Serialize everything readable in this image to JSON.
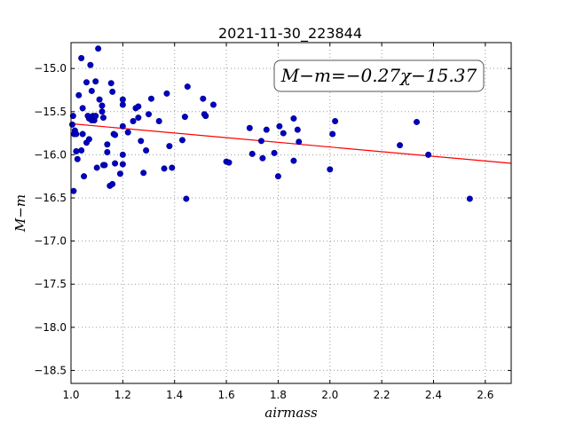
{
  "chart_data": {
    "type": "scatter",
    "title": "2021-11-30_223844",
    "xlabel": "airmass",
    "ylabel": "M−m",
    "annotation": "M−m=−0.27χ−15.37",
    "xlim": [
      1.0,
      2.7
    ],
    "ylim": [
      -18.65,
      -14.7
    ],
    "y_inverted": true,
    "grid": true,
    "xticks": [
      "1.0",
      "1.2",
      "1.4",
      "1.6",
      "1.8",
      "2.0",
      "2.2",
      "2.4",
      "2.6"
    ],
    "yticks": [
      "−15.0",
      "−15.5",
      "−16.0",
      "−16.5",
      "−17.0",
      "−17.5",
      "−18.0",
      "−18.5"
    ],
    "colors": {
      "points": "#0000bf",
      "fit_line": "#ff0000",
      "grid": "#9a9a9a"
    },
    "fit": {
      "slope": -0.27,
      "intercept": -15.37
    },
    "series": [
      {
        "values": [
          [
            1.005,
            -15.65
          ],
          [
            1.008,
            -15.55
          ],
          [
            1.01,
            -16.42
          ],
          [
            1.012,
            -15.76
          ],
          [
            1.015,
            -15.72
          ],
          [
            1.02,
            -15.76
          ],
          [
            1.02,
            -15.96
          ],
          [
            1.025,
            -16.05
          ],
          [
            1.03,
            -15.31
          ],
          [
            1.04,
            -14.88
          ],
          [
            1.045,
            -15.46
          ],
          [
            1.045,
            -15.76
          ],
          [
            1.04,
            -15.95
          ],
          [
            1.05,
            -16.25
          ],
          [
            1.06,
            -15.16
          ],
          [
            1.06,
            -15.86
          ],
          [
            1.065,
            -15.55
          ],
          [
            1.07,
            -15.58
          ],
          [
            1.07,
            -15.82
          ],
          [
            1.075,
            -14.96
          ],
          [
            1.08,
            -15.26
          ],
          [
            1.08,
            -15.6
          ],
          [
            1.085,
            -15.55
          ],
          [
            1.09,
            -15.6
          ],
          [
            1.095,
            -15.55
          ],
          [
            1.095,
            -15.15
          ],
          [
            1.1,
            -16.15
          ],
          [
            1.105,
            -14.77
          ],
          [
            1.11,
            -15.36
          ],
          [
            1.12,
            -15.43
          ],
          [
            1.12,
            -15.5
          ],
          [
            1.125,
            -15.57
          ],
          [
            1.125,
            -16.12
          ],
          [
            1.13,
            -16.12
          ],
          [
            1.14,
            -15.88
          ],
          [
            1.14,
            -15.97
          ],
          [
            1.15,
            -16.36
          ],
          [
            1.155,
            -15.17
          ],
          [
            1.16,
            -15.27
          ],
          [
            1.16,
            -16.34
          ],
          [
            1.165,
            -15.76
          ],
          [
            1.17,
            -15.77
          ],
          [
            1.17,
            -16.1
          ],
          [
            1.19,
            -16.22
          ],
          [
            1.2,
            -15.36
          ],
          [
            1.2,
            -15.42
          ],
          [
            1.2,
            -15.67
          ],
          [
            1.2,
            -16.0
          ],
          [
            1.2,
            -16.11
          ],
          [
            1.22,
            -15.74
          ],
          [
            1.24,
            -15.61
          ],
          [
            1.25,
            -15.46
          ],
          [
            1.26,
            -15.44
          ],
          [
            1.26,
            -15.57
          ],
          [
            1.27,
            -15.84
          ],
          [
            1.28,
            -16.21
          ],
          [
            1.29,
            -15.95
          ],
          [
            1.3,
            -15.53
          ],
          [
            1.31,
            -15.35
          ],
          [
            1.34,
            -15.61
          ],
          [
            1.36,
            -16.16
          ],
          [
            1.37,
            -15.29
          ],
          [
            1.38,
            -15.9
          ],
          [
            1.39,
            -16.15
          ],
          [
            1.43,
            -15.83
          ],
          [
            1.44,
            -15.56
          ],
          [
            1.445,
            -16.51
          ],
          [
            1.45,
            -15.21
          ],
          [
            1.51,
            -15.35
          ],
          [
            1.515,
            -15.53
          ],
          [
            1.52,
            -15.55
          ],
          [
            1.55,
            -15.42
          ],
          [
            1.6,
            -16.08
          ],
          [
            1.61,
            -16.09
          ],
          [
            1.69,
            -15.69
          ],
          [
            1.7,
            -15.99
          ],
          [
            1.735,
            -15.84
          ],
          [
            1.74,
            -16.04
          ],
          [
            1.755,
            -15.71
          ],
          [
            1.785,
            -15.98
          ],
          [
            1.8,
            -16.25
          ],
          [
            1.805,
            -15.67
          ],
          [
            1.82,
            -15.75
          ],
          [
            1.86,
            -15.58
          ],
          [
            1.86,
            -16.07
          ],
          [
            1.875,
            -15.71
          ],
          [
            1.88,
            -15.85
          ],
          [
            2.0,
            -16.17
          ],
          [
            2.01,
            -15.76
          ],
          [
            2.02,
            -15.61
          ],
          [
            2.27,
            -15.89
          ],
          [
            2.335,
            -15.62
          ],
          [
            2.38,
            -16.0
          ],
          [
            2.54,
            -16.51
          ]
        ]
      }
    ]
  }
}
